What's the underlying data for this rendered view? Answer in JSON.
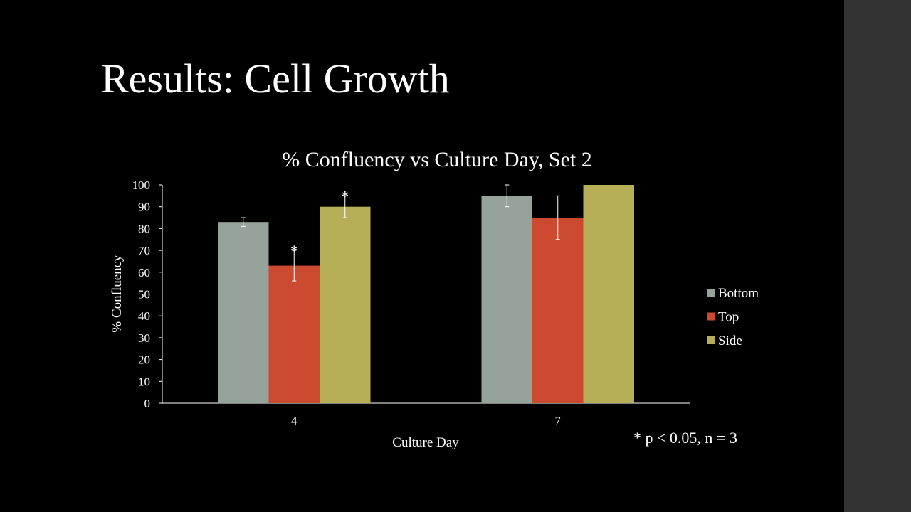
{
  "slide": {
    "title": "Results: Cell Growth",
    "footnote": "* p < 0.05, n = 3"
  },
  "colors": {
    "background": "#000000",
    "side_panel": "#333333",
    "Bottom": "#95a39a",
    "Top": "#cc4a30",
    "Side": "#b7ae58"
  },
  "chart_data": {
    "type": "bar",
    "title": "% Confluency vs Culture Day, Set 2",
    "xlabel": "Culture Day",
    "ylabel": "% Confluency",
    "categories": [
      "4",
      "7"
    ],
    "ylim": [
      0,
      100
    ],
    "yticks": [
      0,
      10,
      20,
      30,
      40,
      50,
      60,
      70,
      80,
      90,
      100
    ],
    "grid": false,
    "legend_position": "right",
    "series": [
      {
        "name": "Bottom",
        "values": [
          83,
          95
        ],
        "errors": [
          2,
          5
        ],
        "significant": [
          false,
          false
        ]
      },
      {
        "name": "Top",
        "values": [
          63,
          85
        ],
        "errors": [
          7,
          10
        ],
        "significant": [
          true,
          false
        ]
      },
      {
        "name": "Side",
        "values": [
          90,
          100
        ],
        "errors": [
          5,
          0
        ],
        "significant": [
          true,
          false
        ]
      }
    ],
    "significance_marker": "*"
  }
}
